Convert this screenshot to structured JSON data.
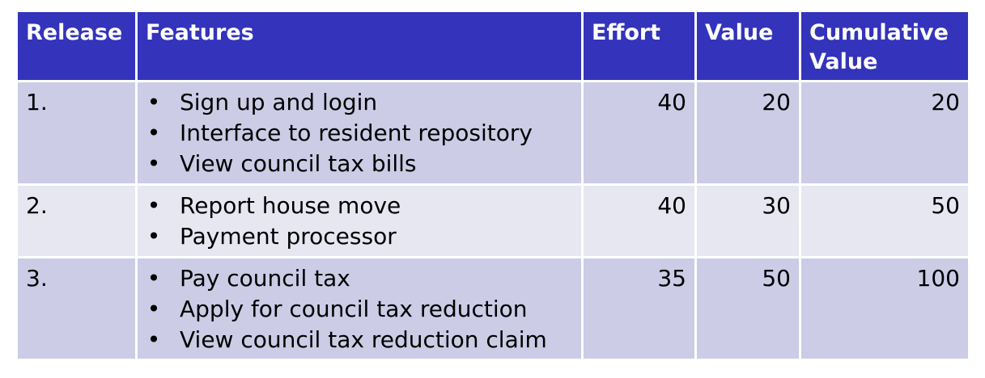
{
  "headers": {
    "release": "Release",
    "features": "Features",
    "effort": "Effort",
    "value": "Value",
    "cumulative_value_line1": "Cumulative",
    "cumulative_value_line2": "Value"
  },
  "bullet": "•",
  "rows": [
    {
      "release": "1.",
      "features": [
        "Sign up and login",
        "Interface to resident repository",
        "View council tax bills"
      ],
      "effort": "40",
      "value": "20",
      "cumulative_value": "20"
    },
    {
      "release": "2.",
      "features": [
        "Report house move",
        "Payment processor"
      ],
      "effort": "40",
      "value": "30",
      "cumulative_value": "50"
    },
    {
      "release": "3.",
      "features": [
        "Pay council tax",
        "Apply for council tax reduction",
        "View council tax reduction claim"
      ],
      "effort": "35",
      "value": "50",
      "cumulative_value": "100"
    }
  ],
  "colors": {
    "header_bg": "#3333bb",
    "row_odd_bg": "#cccce6",
    "row_even_bg": "#e7e7f1"
  }
}
